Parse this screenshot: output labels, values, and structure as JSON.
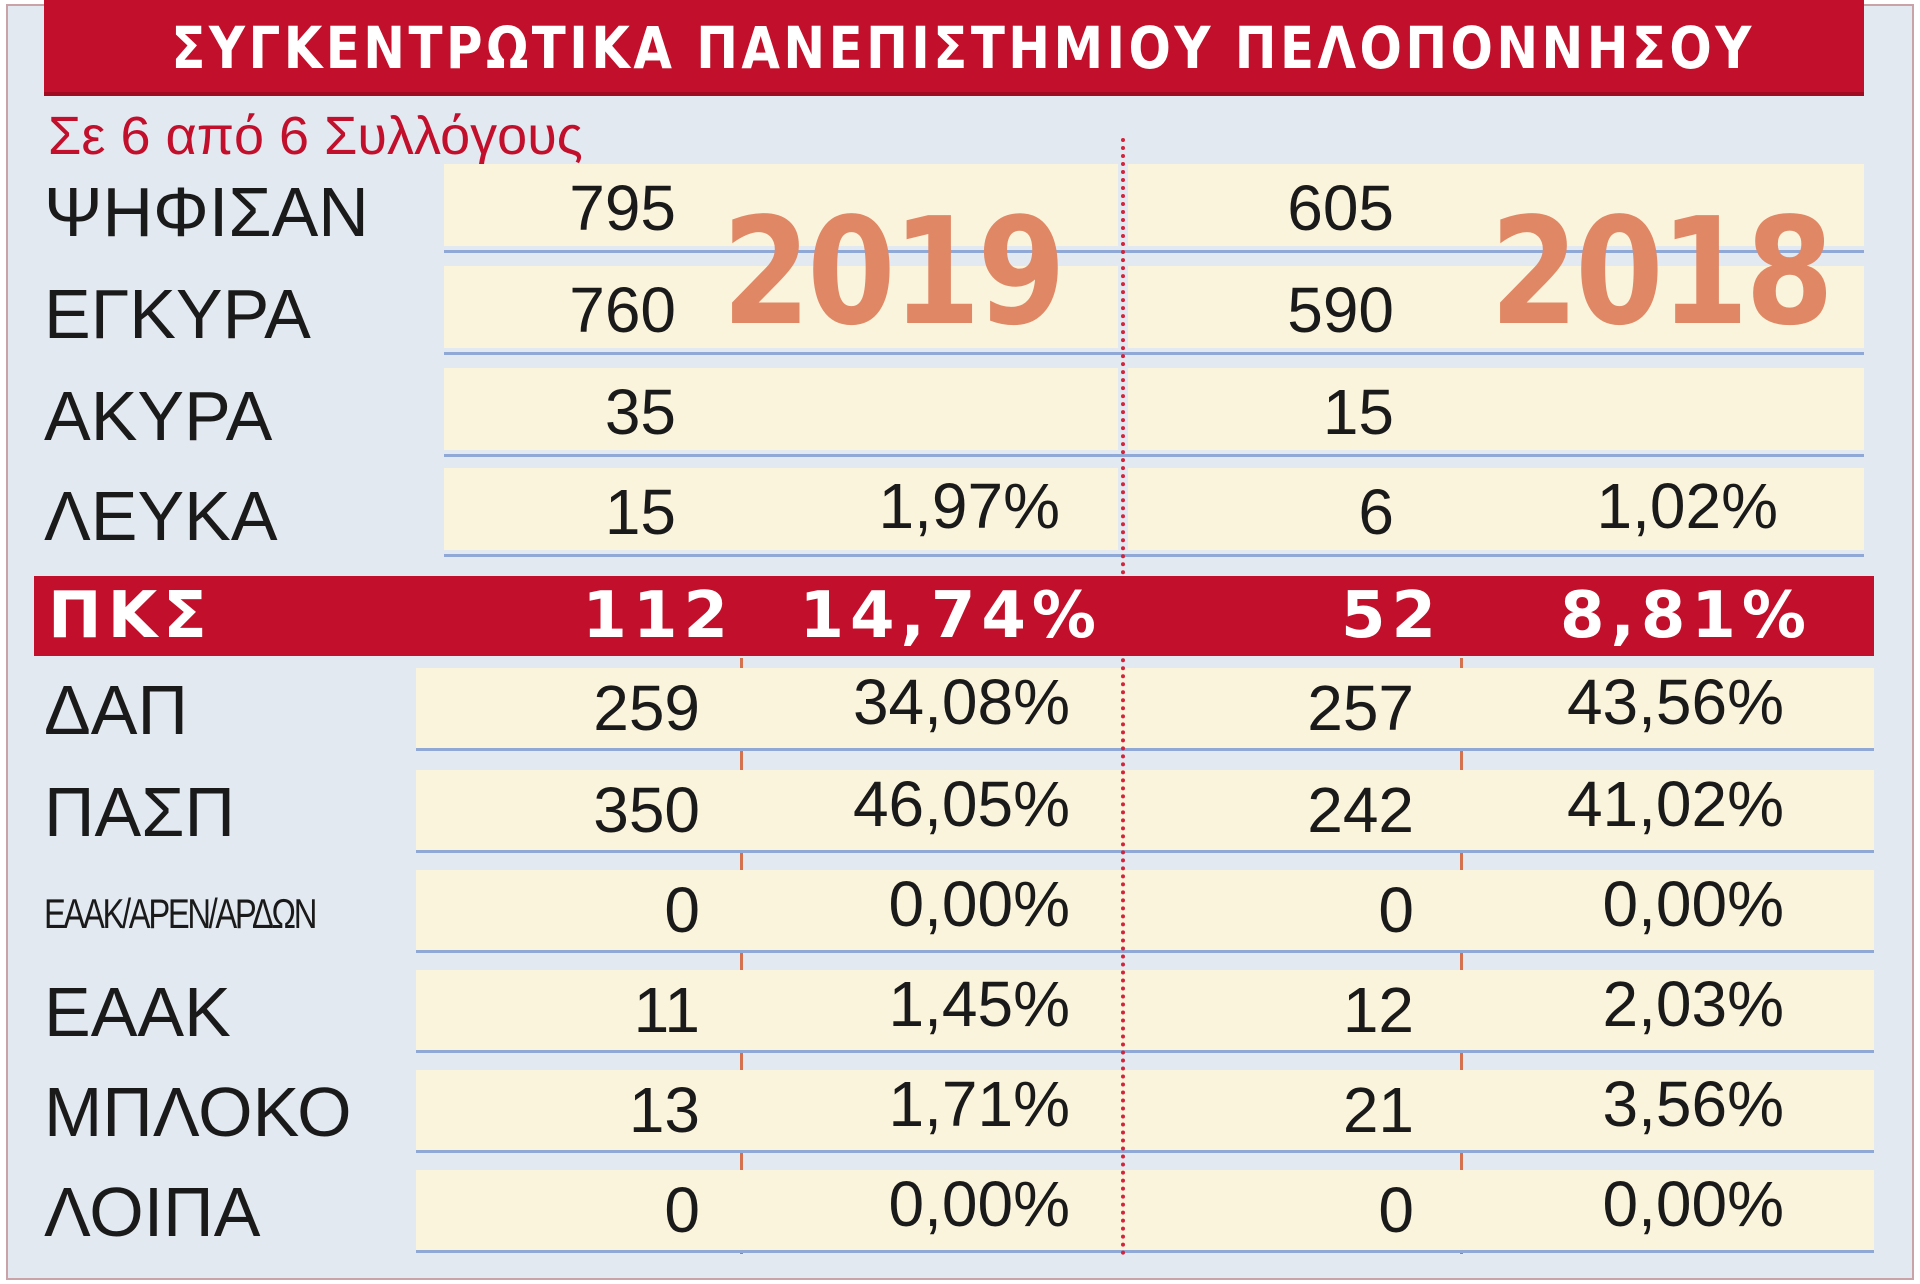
{
  "title": "ΣΥΓΚΕΝΤΡΩΤΙΚΑ ΠΑΝΕΠΙΣΤΗΜΙΟΥ ΠΕΛΟΠΟΝΝΗΣΟΥ",
  "subtitle": "Σε 6 από 6 Συλλόγους",
  "years": {
    "left": "2019",
    "right": "2018"
  },
  "colors": {
    "accent_red": "#c20f2b",
    "year_orange": "#e08865",
    "cell_cream": "#fbf4dc",
    "panel_blue": "#e3e9f1"
  },
  "summary_rows": [
    {
      "label": "ΨΗΦΙΣΑΝ",
      "v2019": "795",
      "p2019": "",
      "v2018": "605",
      "p2018": ""
    },
    {
      "label": "ΕΓΚΥΡΑ",
      "v2019": "760",
      "p2019": "",
      "v2018": "590",
      "p2018": ""
    },
    {
      "label": "ΑΚΥΡΑ",
      "v2019": "35",
      "p2019": "",
      "v2018": "15",
      "p2018": ""
    },
    {
      "label": "ΛΕΥΚΑ",
      "v2019": "15",
      "p2019": "1,97%",
      "v2018": "6",
      "p2018": "1,02%"
    }
  ],
  "highlight_row": {
    "label": "ΠΚΣ",
    "v2019": "112",
    "p2019": "14,74%",
    "v2018": "52",
    "p2018": "8,81%"
  },
  "party_rows": [
    {
      "label": "ΔΑΠ",
      "v2019": "259",
      "p2019": "34,08%",
      "v2018": "257",
      "p2018": "43,56%"
    },
    {
      "label": "ΠΑΣΠ",
      "v2019": "350",
      "p2019": "46,05%",
      "v2018": "242",
      "p2018": "41,02%"
    },
    {
      "label": "ΕΑΑΚ/ΑΡΕΝ/ΑΡΔΩΝ",
      "v2019": "0",
      "p2019": "0,00%",
      "v2018": "0",
      "p2018": "0,00%"
    },
    {
      "label": "ΕΑΑΚ",
      "v2019": "11",
      "p2019": "1,45%",
      "v2018": "12",
      "p2018": "2,03%"
    },
    {
      "label": "ΜΠΛΟΚΟ",
      "v2019": "13",
      "p2019": "1,71%",
      "v2018": "21",
      "p2018": "3,56%"
    },
    {
      "label": "ΛΟΙΠΑ",
      "v2019": "0",
      "p2019": "0,00%",
      "v2018": "0",
      "p2018": "0,00%"
    }
  ]
}
